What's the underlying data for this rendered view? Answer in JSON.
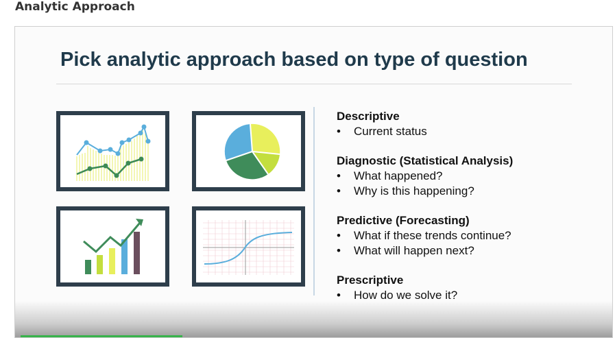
{
  "page": {
    "heading": "Analytic Approach"
  },
  "slide": {
    "title": "Pick analytic approach based on type of question",
    "sections": [
      {
        "title": "Descriptive",
        "bullets": [
          "Current status"
        ]
      },
      {
        "title": "Diagnostic (Statistical Analysis)",
        "bullets": [
          "What happened?",
          "Why is this happening?"
        ]
      },
      {
        "title": "Predictive (Forecasting)",
        "bullets": [
          "What if these trends continue?",
          "What will happen next?"
        ]
      },
      {
        "title": "Prescriptive",
        "bullets": [
          "How do we solve it?"
        ]
      }
    ],
    "bullet_glyph": "•"
  },
  "icons": {
    "frame1": "line-chart-icon",
    "frame2": "pie-chart-icon",
    "frame3": "growth-bar-chart-icon",
    "frame4": "s-curve-graph-icon"
  },
  "colors": {
    "title": "#1f3a4b",
    "frame_border": "#2e3e4b",
    "line_blue": "#5aaedc",
    "line_green": "#3d8a55",
    "yellow": "#e7ee6a",
    "lime": "#c3de3e",
    "dark_green": "#3f8c5a",
    "purple": "#6b4f5e",
    "progress": "#37b34a"
  }
}
